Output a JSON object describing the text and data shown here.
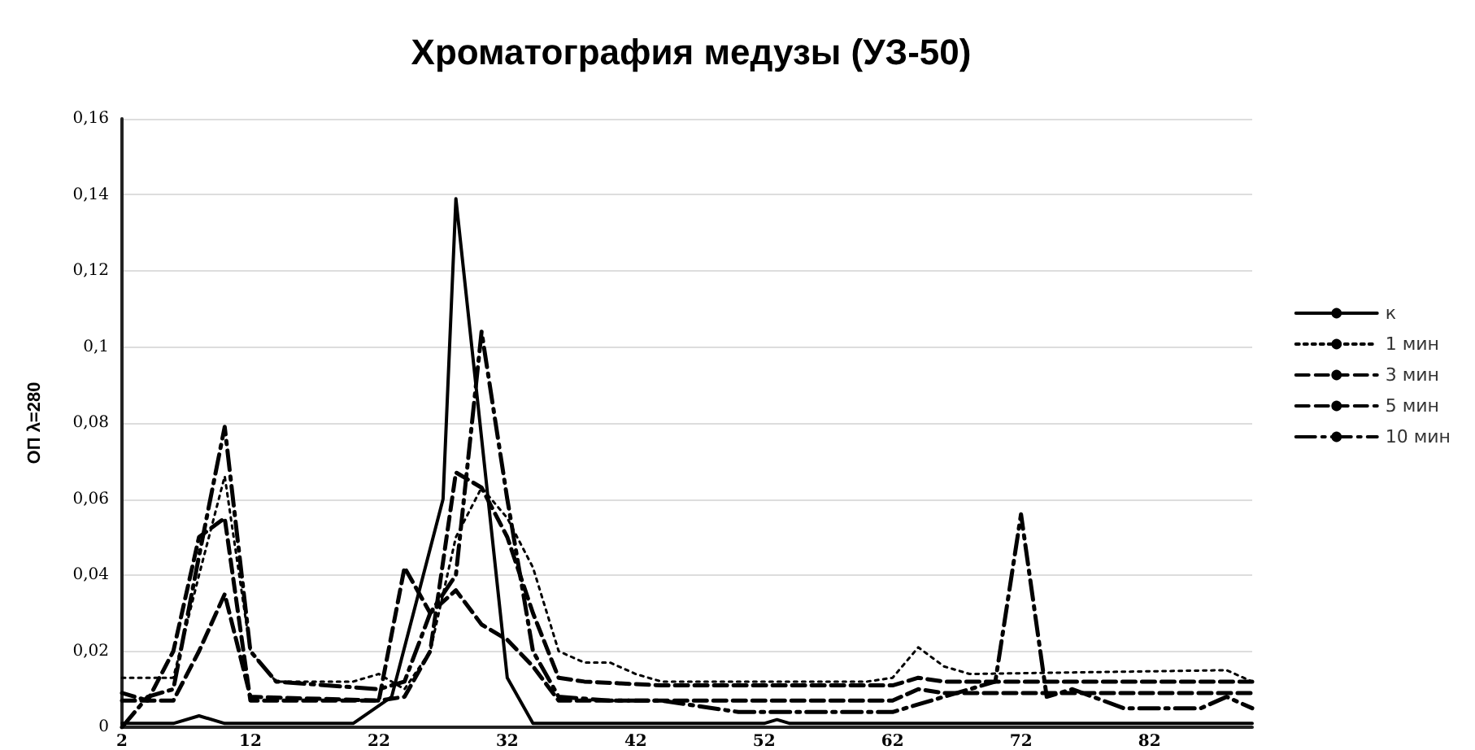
{
  "chart_data": {
    "type": "line",
    "title": "Хроматография медузы (УЗ-50)",
    "ylabel": "ОП λ=280",
    "xlim": [
      2,
      90
    ],
    "xticks": [
      2,
      12,
      22,
      32,
      42,
      52,
      62,
      72,
      82
    ],
    "ylim": [
      0,
      0.16
    ],
    "yticks": [
      0,
      {
        "value": 0.02,
        "label": "0,02"
      },
      {
        "value": 0.04,
        "label": "0,04"
      },
      {
        "value": 0.06,
        "label": "0,06"
      },
      {
        "value": 0.08,
        "label": "0,08"
      },
      {
        "value": 0.1,
        "label": "0,1"
      },
      {
        "value": 0.12,
        "label": "0,12"
      },
      {
        "value": 0.14,
        "label": "0,14"
      },
      {
        "value": 0.16,
        "label": "0,16"
      }
    ],
    "grid": "y",
    "legend": "right",
    "marker": "none",
    "series": [
      {
        "name": "к",
        "color": "#000000",
        "line_style": "solid",
        "x": [
          2,
          6,
          8,
          10,
          20,
          23,
          27,
          28,
          32,
          34,
          52,
          53,
          54,
          90
        ],
        "values": [
          0.001,
          0.001,
          0.003,
          0.001,
          0.001,
          0.008,
          0.06,
          0.139,
          0.013,
          0.001,
          0.001,
          0.002,
          0.001,
          0.001
        ]
      },
      {
        "name": "1 мин",
        "color": "#000000",
        "line_style": "dotted",
        "x": [
          2,
          6,
          8,
          10,
          12,
          14,
          20,
          22,
          24,
          26,
          28,
          30,
          32,
          34,
          36,
          38,
          40,
          42,
          44,
          60,
          62,
          64,
          66,
          68,
          88,
          90
        ],
        "values": [
          0.013,
          0.013,
          0.04,
          0.066,
          0.02,
          0.012,
          0.012,
          0.014,
          0.01,
          0.02,
          0.05,
          0.063,
          0.055,
          0.042,
          0.02,
          0.017,
          0.017,
          0.014,
          0.012,
          0.012,
          0.013,
          0.021,
          0.016,
          0.014,
          0.015,
          0.012
        ]
      },
      {
        "name": "3 мин",
        "color": "#000000",
        "line_style": "dashed",
        "x": [
          2,
          6,
          8,
          10,
          12,
          22,
          24,
          26,
          28,
          30,
          32,
          34,
          36,
          38,
          44,
          62,
          64,
          66,
          90
        ],
        "values": [
          0.007,
          0.007,
          0.02,
          0.035,
          0.008,
          0.007,
          0.008,
          0.02,
          0.067,
          0.063,
          0.05,
          0.03,
          0.013,
          0.012,
          0.011,
          0.011,
          0.013,
          0.012,
          0.012
        ]
      },
      {
        "name": "5 мин",
        "color": "#000000",
        "line_style": "dashed",
        "x": [
          2,
          4,
          6,
          8,
          10,
          12,
          22,
          24,
          26,
          28,
          30,
          32,
          34,
          36,
          62,
          64,
          66,
          90
        ],
        "values": [
          0.009,
          0.007,
          0.02,
          0.05,
          0.055,
          0.007,
          0.007,
          0.042,
          0.03,
          0.036,
          0.027,
          0.023,
          0.016,
          0.007,
          0.007,
          0.01,
          0.009,
          0.009
        ]
      },
      {
        "name": "10 мин",
        "color": "#000000",
        "line_style": "dashdot",
        "x": [
          2,
          4,
          6,
          8,
          10,
          12,
          14,
          22,
          24,
          26,
          28,
          30,
          32,
          34,
          36,
          40,
          44,
          46,
          50,
          62,
          64,
          70,
          72,
          74,
          76,
          80,
          86,
          88,
          90
        ],
        "values": [
          0,
          0.008,
          0.01,
          0.045,
          0.079,
          0.02,
          0.012,
          0.01,
          0.012,
          0.03,
          0.04,
          0.104,
          0.06,
          0.02,
          0.008,
          0.007,
          0.007,
          0.006,
          0.004,
          0.004,
          0.006,
          0.012,
          0.056,
          0.008,
          0.01,
          0.005,
          0.005,
          0.008,
          0.005
        ]
      }
    ]
  }
}
